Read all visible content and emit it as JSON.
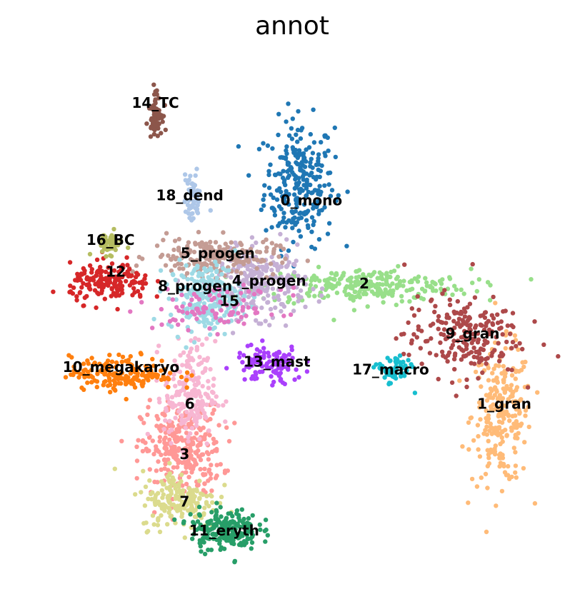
{
  "chart_data": {
    "type": "scatter",
    "title": "annot",
    "xlabel": "",
    "ylabel": "",
    "grid": false,
    "legend": "on data",
    "xlim": [
      0,
      100
    ],
    "ylim": [
      0,
      100
    ],
    "series": [
      {
        "name": "0_mono",
        "color": "#1f77b4",
        "x": 51.2,
        "y": 75.5,
        "sx": 3.3,
        "sy": 6.0,
        "n": 260
      },
      {
        "name": "1_gran",
        "color": "#ffbb78",
        "x": 89.5,
        "y": 31.5,
        "sx": 2.8,
        "sy": 6.5,
        "n": 240
      },
      {
        "name": "2",
        "color": "#98df8a",
        "x": 63.5,
        "y": 56.0,
        "sx": 10.0,
        "sy": 1.6,
        "n": 260
      },
      {
        "name": "3",
        "color": "#ff9896",
        "x": 29.0,
        "y": 25.0,
        "sx": 3.8,
        "sy": 4.2,
        "n": 300
      },
      {
        "name": "4_progen",
        "color": "#c5b0d5",
        "x": 44.0,
        "y": 56.5,
        "sx": 4.2,
        "sy": 3.2,
        "n": 240
      },
      {
        "name": "5_progen",
        "color": "#c49c94",
        "x": 35.0,
        "y": 61.5,
        "sx": 6.0,
        "sy": 1.8,
        "n": 200
      },
      {
        "name": "6",
        "color": "#f7b6d2",
        "x": 30.5,
        "y": 35.5,
        "sx": 2.4,
        "sy": 5.0,
        "n": 200
      },
      {
        "name": "7",
        "color": "#dbdb8d",
        "x": 28.5,
        "y": 15.5,
        "sx": 3.6,
        "sy": 2.8,
        "n": 180
      },
      {
        "name": "8_progen",
        "color": "#9edae5",
        "x": 33.5,
        "y": 54.0,
        "sx": 3.5,
        "sy": 3.2,
        "n": 220
      },
      {
        "name": "9_gran",
        "color": "#ad494a",
        "x": 82.0,
        "y": 46.5,
        "sx": 5.5,
        "sy": 3.8,
        "n": 220
      },
      {
        "name": "10_megakaryo",
        "color": "#ff7f0e",
        "x": 18.0,
        "y": 39.5,
        "sx": 5.0,
        "sy": 1.6,
        "n": 180
      },
      {
        "name": "11_eryth",
        "color": "#279e68",
        "x": 37.0,
        "y": 10.0,
        "sx": 3.2,
        "sy": 2.0,
        "n": 200
      },
      {
        "name": "12",
        "color": "#d62728",
        "x": 15.5,
        "y": 56.5,
        "sx": 3.8,
        "sy": 1.8,
        "n": 170
      },
      {
        "name": "13_mast",
        "color": "#aa40fc",
        "x": 45.5,
        "y": 41.0,
        "sx": 3.2,
        "sy": 1.8,
        "n": 110
      },
      {
        "name": "14_TC",
        "color": "#8c564b",
        "x": 24.0,
        "y": 89.0,
        "sx": 0.6,
        "sy": 2.0,
        "n": 70
      },
      {
        "name": "15",
        "color": "#e377c2",
        "x": 36.0,
        "y": 51.5,
        "sx": 6.0,
        "sy": 2.0,
        "n": 90
      },
      {
        "name": "16_BC",
        "color": "#b5bd61",
        "x": 15.0,
        "y": 64.0,
        "sx": 1.4,
        "sy": 1.0,
        "n": 50
      },
      {
        "name": "17_macro",
        "color": "#17becf",
        "x": 69.0,
        "y": 40.0,
        "sx": 1.6,
        "sy": 1.4,
        "n": 60
      },
      {
        "name": "18_dend",
        "color": "#aec7e8",
        "x": 31.0,
        "y": 72.5,
        "sx": 0.8,
        "sy": 2.4,
        "n": 55
      }
    ],
    "labels": [
      {
        "text": "0_mono",
        "x": 53.5,
        "y": 72.0
      },
      {
        "text": "1_gran",
        "x": 90.0,
        "y": 33.5
      },
      {
        "text": "2",
        "x": 63.5,
        "y": 56.3
      },
      {
        "text": "3",
        "x": 29.5,
        "y": 24.0
      },
      {
        "text": "4_progen",
        "x": 45.5,
        "y": 56.8
      },
      {
        "text": "5_progen",
        "x": 35.8,
        "y": 62.0
      },
      {
        "text": "6",
        "x": 30.5,
        "y": 33.5
      },
      {
        "text": "7",
        "x": 29.5,
        "y": 15.0
      },
      {
        "text": "8_progen",
        "x": 31.5,
        "y": 55.8
      },
      {
        "text": "9_gran",
        "x": 84.0,
        "y": 46.8
      },
      {
        "text": "10_megakaryo",
        "x": 17.5,
        "y": 40.5
      },
      {
        "text": "11_eryth",
        "x": 37.0,
        "y": 9.5
      },
      {
        "text": "12",
        "x": 16.5,
        "y": 58.5
      },
      {
        "text": "13_mast",
        "x": 47.0,
        "y": 41.5
      },
      {
        "text": "14_TC",
        "x": 24.0,
        "y": 90.5
      },
      {
        "text": "15",
        "x": 38.0,
        "y": 53.0
      },
      {
        "text": "16_BC",
        "x": 15.5,
        "y": 64.5
      },
      {
        "text": "17_macro",
        "x": 68.5,
        "y": 40.0
      },
      {
        "text": "18_dend",
        "x": 30.5,
        "y": 73.0
      }
    ]
  }
}
